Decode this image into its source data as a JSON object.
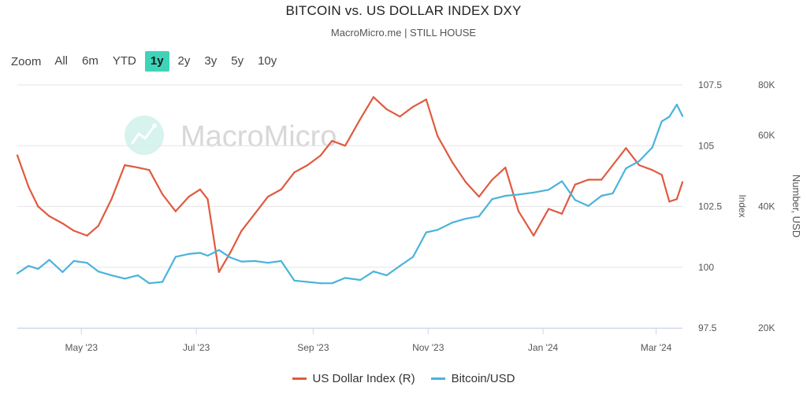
{
  "header": {
    "title": "BITCOIN vs. US DOLLAR INDEX DXY",
    "subtitle": "MacroMicro.me | STILL HOUSE"
  },
  "watermark": {
    "text": "MacroMicro",
    "icon": "macromicro-logo-icon"
  },
  "zoom": {
    "label": "Zoom",
    "options": [
      "All",
      "6m",
      "YTD",
      "1y",
      "2y",
      "3y",
      "5y",
      "10y"
    ],
    "active": "1y"
  },
  "colors": {
    "dxy": "#e05a3f",
    "btc": "#4ab3dc",
    "active_zoom": "#3fd3b8",
    "grid": "#e6e6e6"
  },
  "chart_data": {
    "type": "line",
    "title": "BITCOIN vs. US DOLLAR INDEX DXY",
    "x_range": [
      "2023-03-28",
      "2024-03-15"
    ],
    "x_ticks": [
      {
        "date": "2023-05-01",
        "label": "May '23"
      },
      {
        "date": "2023-07-01",
        "label": "Jul '23"
      },
      {
        "date": "2023-09-01",
        "label": "Sep '23"
      },
      {
        "date": "2023-11-01",
        "label": "Nov '23"
      },
      {
        "date": "2024-01-01",
        "label": "Jan '24"
      },
      {
        "date": "2024-03-01",
        "label": "Mar '24"
      }
    ],
    "y_left": {
      "label": "Index",
      "range": [
        97.5,
        107.5
      ],
      "ticks": [
        "107.5",
        "105",
        "102.5",
        "100",
        "97.5"
      ],
      "tick_values": [
        107.5,
        105,
        102.5,
        100,
        97.5
      ]
    },
    "y_right": {
      "label": "Number, USD",
      "scale": "log",
      "range": [
        20000,
        80000
      ],
      "ticks": [
        "80K",
        "60K",
        "40K",
        "20K"
      ],
      "tick_values": [
        80000,
        60000,
        40000,
        20000
      ]
    },
    "legend_position": "bottom",
    "series": [
      {
        "name": "US Dollar Index (R)",
        "axis": "left",
        "x": [
          "2023-03-28",
          "2023-04-03",
          "2023-04-08",
          "2023-04-14",
          "2023-04-21",
          "2023-04-27",
          "2023-05-04",
          "2023-05-10",
          "2023-05-17",
          "2023-05-24",
          "2023-05-31",
          "2023-06-06",
          "2023-06-13",
          "2023-06-20",
          "2023-06-27",
          "2023-07-03",
          "2023-07-07",
          "2023-07-13",
          "2023-07-19",
          "2023-07-25",
          "2023-08-01",
          "2023-08-08",
          "2023-08-15",
          "2023-08-22",
          "2023-08-29",
          "2023-09-05",
          "2023-09-11",
          "2023-09-18",
          "2023-09-26",
          "2023-10-03",
          "2023-10-10",
          "2023-10-17",
          "2023-10-24",
          "2023-10-31",
          "2023-11-06",
          "2023-11-14",
          "2023-11-21",
          "2023-11-28",
          "2023-12-05",
          "2023-12-12",
          "2023-12-19",
          "2023-12-27",
          "2024-01-04",
          "2024-01-11",
          "2024-01-18",
          "2024-01-25",
          "2024-02-01",
          "2024-02-07",
          "2024-02-14",
          "2024-02-21",
          "2024-02-28",
          "2024-03-04",
          "2024-03-08",
          "2024-03-12",
          "2024-03-15"
        ],
        "values": [
          104.6,
          103.3,
          102.5,
          102.1,
          101.8,
          101.5,
          101.3,
          101.7,
          102.8,
          104.2,
          104.1,
          104.0,
          103.0,
          102.3,
          102.9,
          103.2,
          102.8,
          99.8,
          100.6,
          101.5,
          102.2,
          102.9,
          103.2,
          103.9,
          104.2,
          104.6,
          105.2,
          105.0,
          106.1,
          107.0,
          106.5,
          106.2,
          106.6,
          106.9,
          105.4,
          104.3,
          103.5,
          102.9,
          103.6,
          104.1,
          102.3,
          101.3,
          102.4,
          102.2,
          103.4,
          103.6,
          103.6,
          104.2,
          104.9,
          104.2,
          104.0,
          103.8,
          102.7,
          102.8,
          103.5
        ]
      },
      {
        "name": "Bitcoin/USD",
        "axis": "right",
        "x": [
          "2023-03-28",
          "2023-04-03",
          "2023-04-08",
          "2023-04-14",
          "2023-04-21",
          "2023-04-27",
          "2023-05-04",
          "2023-05-10",
          "2023-05-17",
          "2023-05-24",
          "2023-05-31",
          "2023-06-06",
          "2023-06-13",
          "2023-06-20",
          "2023-06-27",
          "2023-07-03",
          "2023-07-07",
          "2023-07-13",
          "2023-07-19",
          "2023-07-25",
          "2023-08-01",
          "2023-08-08",
          "2023-08-15",
          "2023-08-22",
          "2023-08-29",
          "2023-09-05",
          "2023-09-11",
          "2023-09-18",
          "2023-09-26",
          "2023-10-03",
          "2023-10-10",
          "2023-10-17",
          "2023-10-24",
          "2023-10-31",
          "2023-11-06",
          "2023-11-14",
          "2023-11-21",
          "2023-11-28",
          "2023-12-05",
          "2023-12-12",
          "2023-12-19",
          "2023-12-27",
          "2024-01-04",
          "2024-01-11",
          "2024-01-18",
          "2024-01-25",
          "2024-02-01",
          "2024-02-07",
          "2024-02-14",
          "2024-02-21",
          "2024-02-28",
          "2024-03-04",
          "2024-03-08",
          "2024-03-12",
          "2024-03-15"
        ],
        "values": [
          27300,
          28500,
          28000,
          29500,
          27500,
          29300,
          29000,
          27600,
          27000,
          26500,
          27000,
          25800,
          26000,
          30000,
          30500,
          30700,
          30200,
          31200,
          29900,
          29200,
          29300,
          29000,
          29300,
          26200,
          26000,
          25800,
          25800,
          26600,
          26300,
          27600,
          27000,
          28500,
          30000,
          34500,
          35000,
          36500,
          37300,
          37800,
          41700,
          42500,
          42800,
          43300,
          44000,
          46200,
          41500,
          40100,
          42500,
          43100,
          49700,
          51800,
          56000,
          65000,
          66700,
          71500,
          67000
        ]
      }
    ]
  },
  "legend": {
    "items": [
      {
        "label": "US Dollar Index (R)",
        "color": "#e05a3f"
      },
      {
        "label": "Bitcoin/USD",
        "color": "#4ab3dc"
      }
    ]
  }
}
